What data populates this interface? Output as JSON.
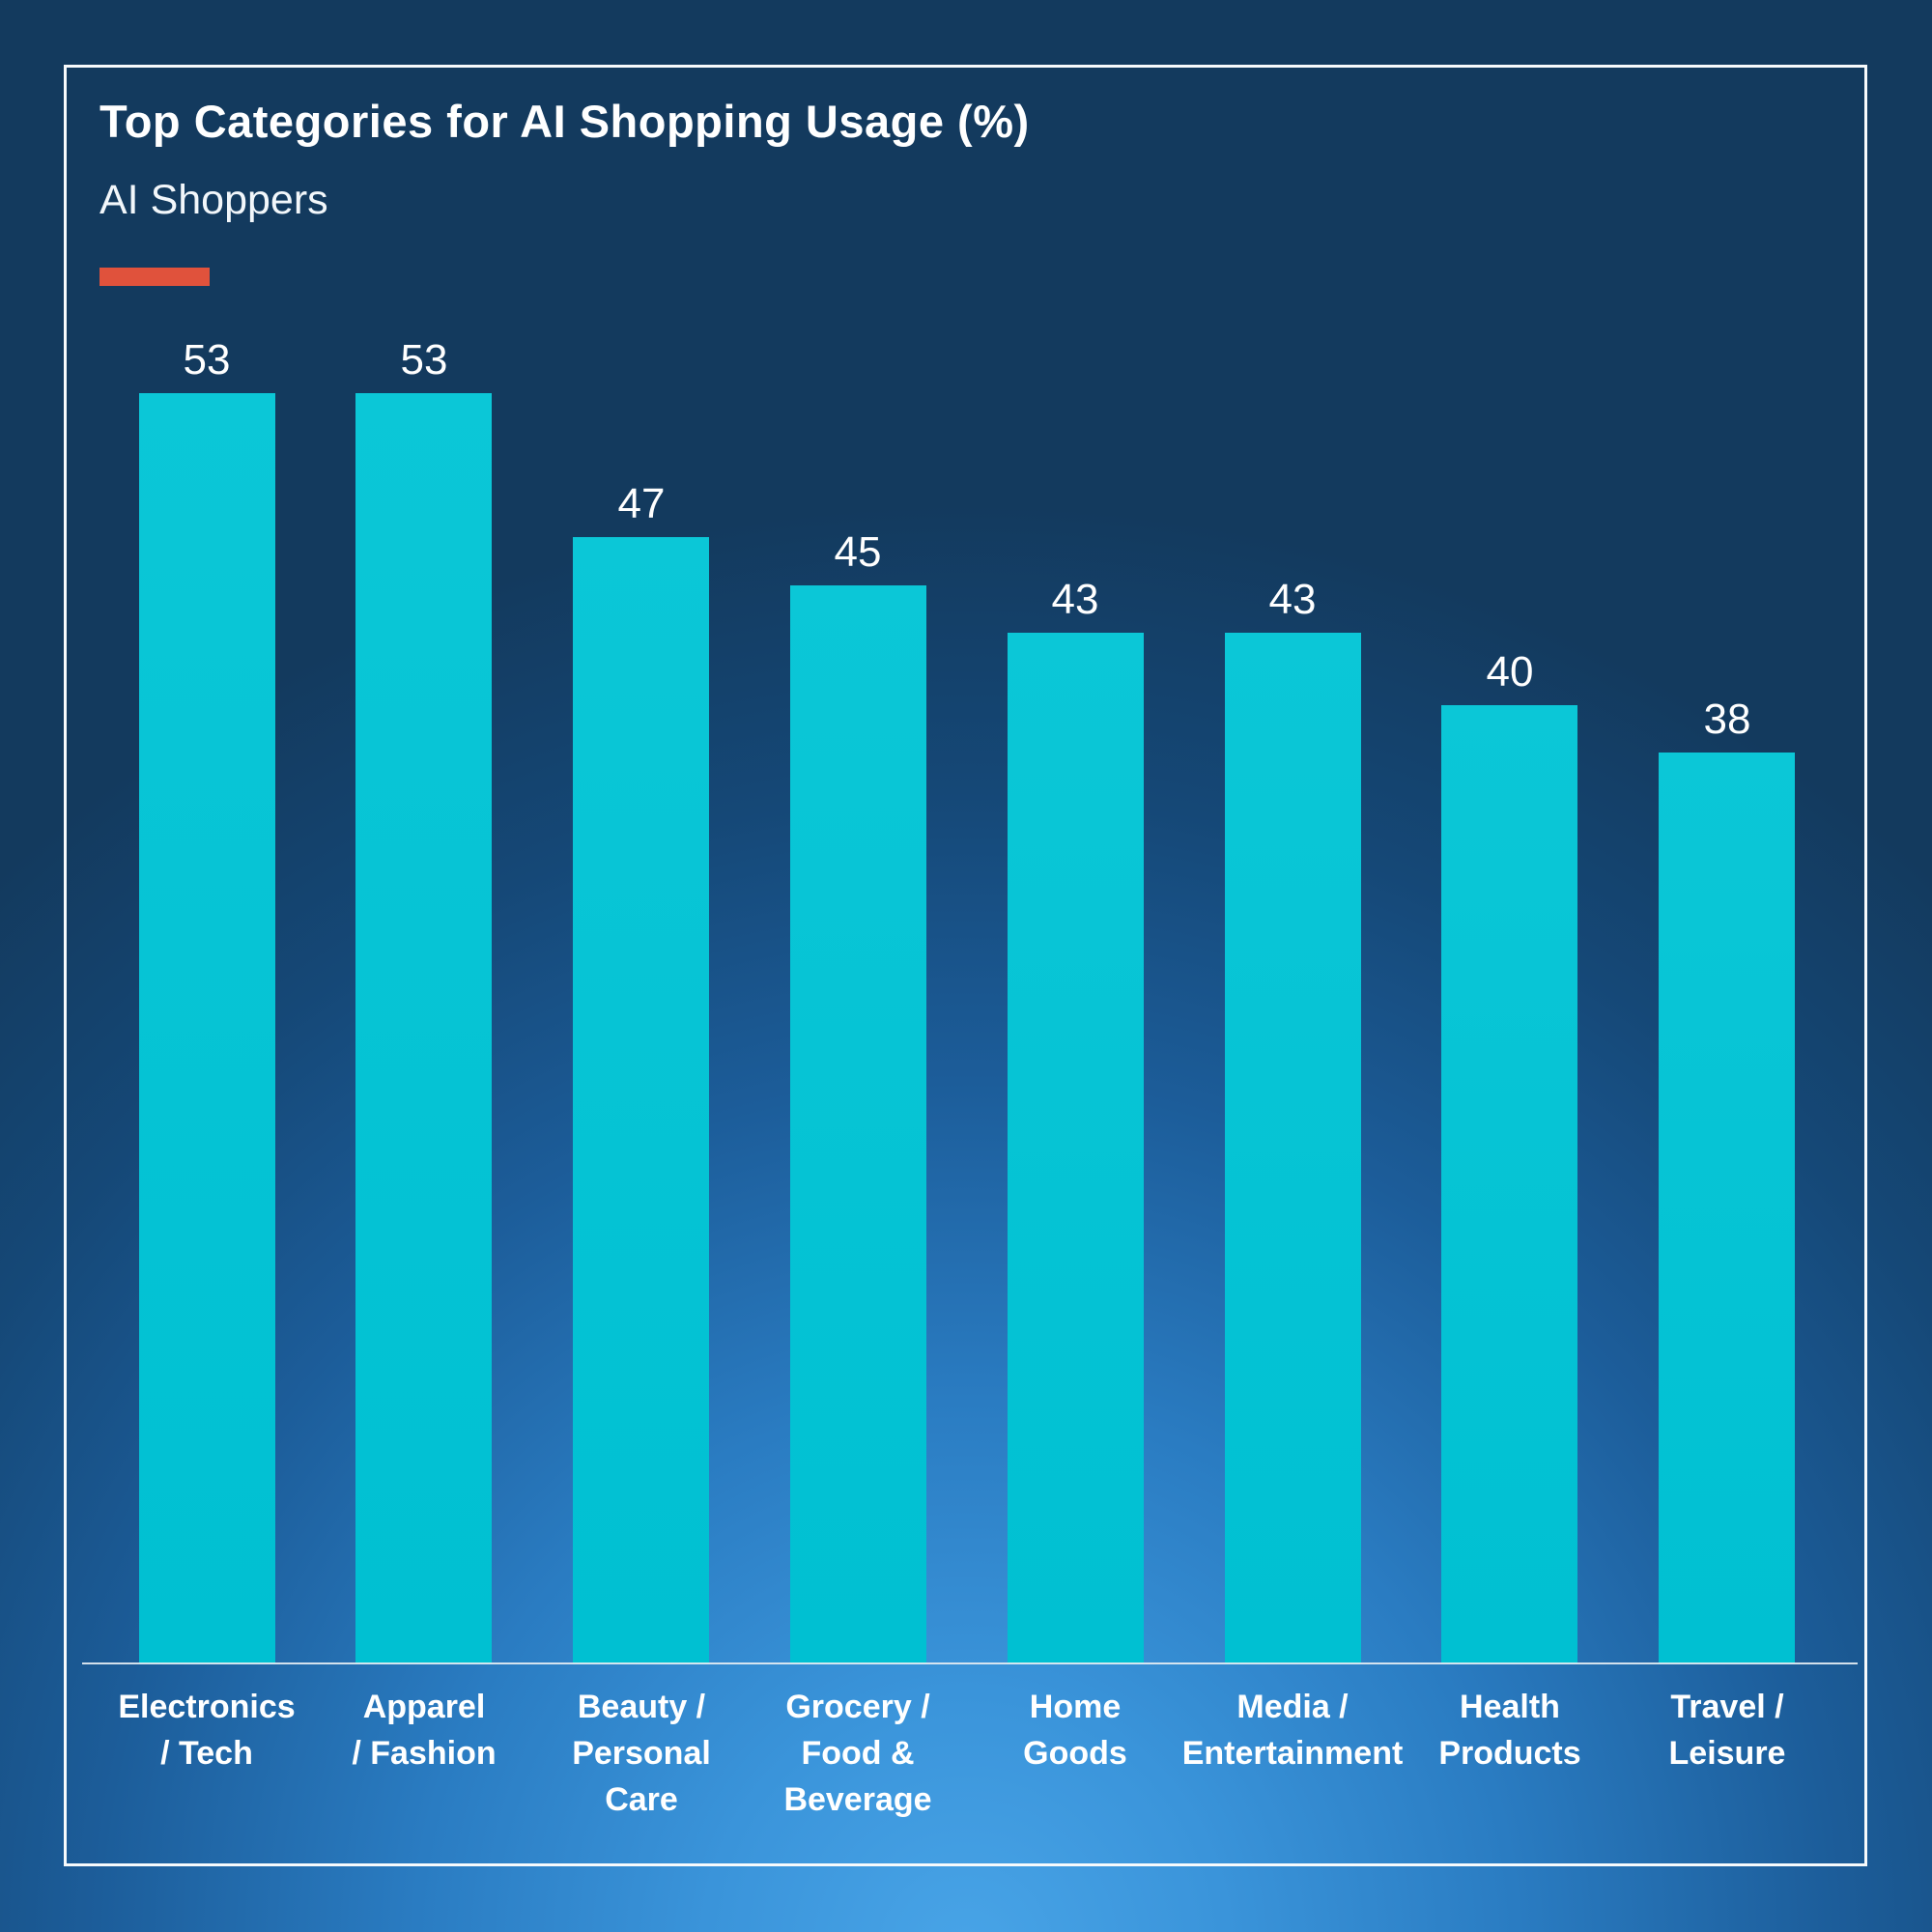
{
  "header": {
    "title": "Top Categories for AI Shopping Usage (%)",
    "subtitle": "AI Shoppers"
  },
  "colors": {
    "background_dark": "#133a5e",
    "background_glow": "#48a4e7",
    "bar": "#00c3d4",
    "accent_dash": "#e0523c",
    "text": "#ffffff",
    "axis_line": "#e3ebf2",
    "frame_border": "#f7fafc"
  },
  "chart_data": {
    "type": "bar",
    "title": "Top Categories for AI Shopping Usage (%)",
    "series": [
      {
        "name": "AI Shoppers",
        "values": [
          53,
          53,
          47,
          45,
          43,
          43,
          40,
          38
        ]
      }
    ],
    "categories": [
      "Electronics / Tech",
      "Apparel / Fashion",
      "Beauty / Personal Care",
      "Grocery / Food & Beverage",
      "Home Goods",
      "Media / Entertainment",
      "Health Products",
      "Travel / Leisure"
    ],
    "category_label_lines": [
      [
        "Electronics",
        "/ Tech"
      ],
      [
        "Apparel",
        "/ Fashion"
      ],
      [
        "Beauty /",
        "Personal",
        "Care"
      ],
      [
        "Grocery /",
        "Food &",
        "Beverage"
      ],
      [
        "Home",
        "Goods"
      ],
      [
        "Media /",
        "Entertainment"
      ],
      [
        "Health",
        "Products"
      ],
      [
        "Travel /",
        "Leisure"
      ]
    ],
    "data_labels": [
      53,
      53,
      47,
      45,
      43,
      43,
      40,
      38
    ],
    "unit": "%",
    "ylabel": "",
    "xlabel": "",
    "ylim": [
      0,
      55
    ],
    "grid": false,
    "legend": false,
    "bar_color": "#00c3d4"
  }
}
